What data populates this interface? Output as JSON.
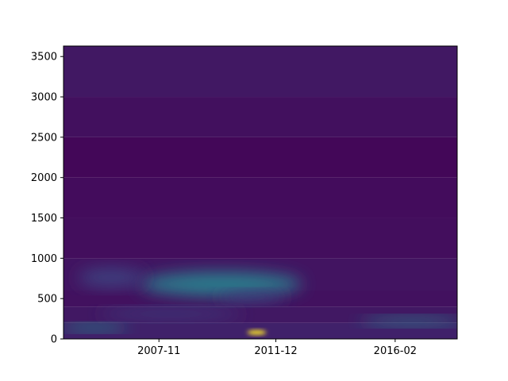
{
  "chart_data": {
    "type": "heatmap",
    "title": "",
    "xlabel": "",
    "ylabel": "",
    "colormap": "viridis",
    "x_ticks": [
      "2007-11",
      "2011-12",
      "2016-02"
    ],
    "y_ticks": [
      "0",
      "500",
      "1000",
      "1500",
      "2000",
      "2500",
      "3000",
      "3500"
    ],
    "x_range": [
      "2004-07",
      "2018-04"
    ],
    "ylim": [
      0,
      3630
    ],
    "intensity_scale": [
      0,
      1
    ],
    "features": [
      {
        "x_center": "2010-01",
        "y_center": 680,
        "x_spread_months": 34,
        "y_spread": 150,
        "intensity": 0.42
      },
      {
        "x_center": "2006-03",
        "y_center": 760,
        "x_spread_months": 14,
        "y_spread": 110,
        "intensity": 0.2
      },
      {
        "x_center": "2016-09",
        "y_center": 220,
        "x_spread_months": 22,
        "y_spread": 45,
        "intensity": 0.42
      },
      {
        "x_center": "2005-08",
        "y_center": 140,
        "x_spread_months": 14,
        "y_spread": 40,
        "intensity": 0.48
      },
      {
        "x_center": "2011-04",
        "y_center": 80,
        "x_spread_months": 4,
        "y_spread": 22,
        "intensity": 1.0
      },
      {
        "x_center": "2011-02",
        "y_center": 520,
        "x_spread_months": 14,
        "y_spread": 60,
        "intensity": 0.18
      },
      {
        "x_center": "2008-04",
        "y_center": 310,
        "x_spread_months": 30,
        "y_spread": 60,
        "intensity": 0.18
      }
    ]
  }
}
